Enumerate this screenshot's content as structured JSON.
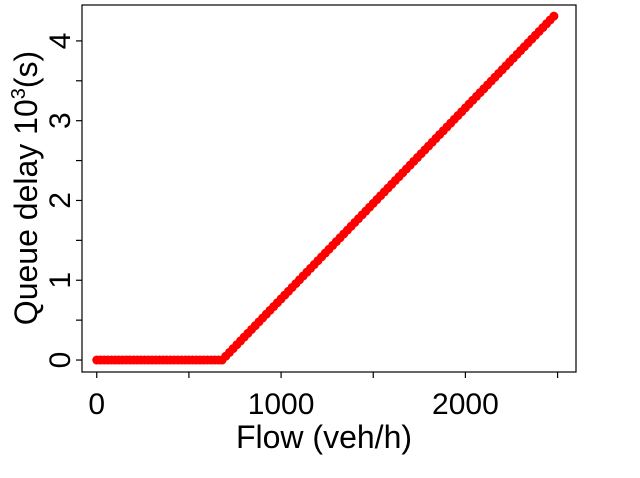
{
  "chart_data": {
    "type": "scatter",
    "xlabel": "Flow (veh/h)",
    "ylabel_main": "Queue delay 10",
    "ylabel_sup": "3",
    "ylabel_end": "(s)",
    "xlim": [
      -80,
      2600
    ],
    "ylim": [
      -0.15,
      4.45
    ],
    "xticks": [
      0,
      1000,
      2000
    ],
    "xtick_labels": [
      "0",
      "1000",
      "2000"
    ],
    "yticks": [
      0,
      1,
      2,
      3,
      4
    ],
    "ytick_labels": [
      "0",
      "1",
      "2",
      "3",
      "4"
    ],
    "grid": false,
    "legend": false,
    "marker_color": "#ff0000",
    "series": [
      {
        "x_start": 0,
        "x_end": 2480,
        "x_step": 20,
        "points": [
          [
            0,
            0
          ],
          [
            680,
            0
          ],
          [
            2480,
            4.31
          ]
        ]
      }
    ]
  }
}
